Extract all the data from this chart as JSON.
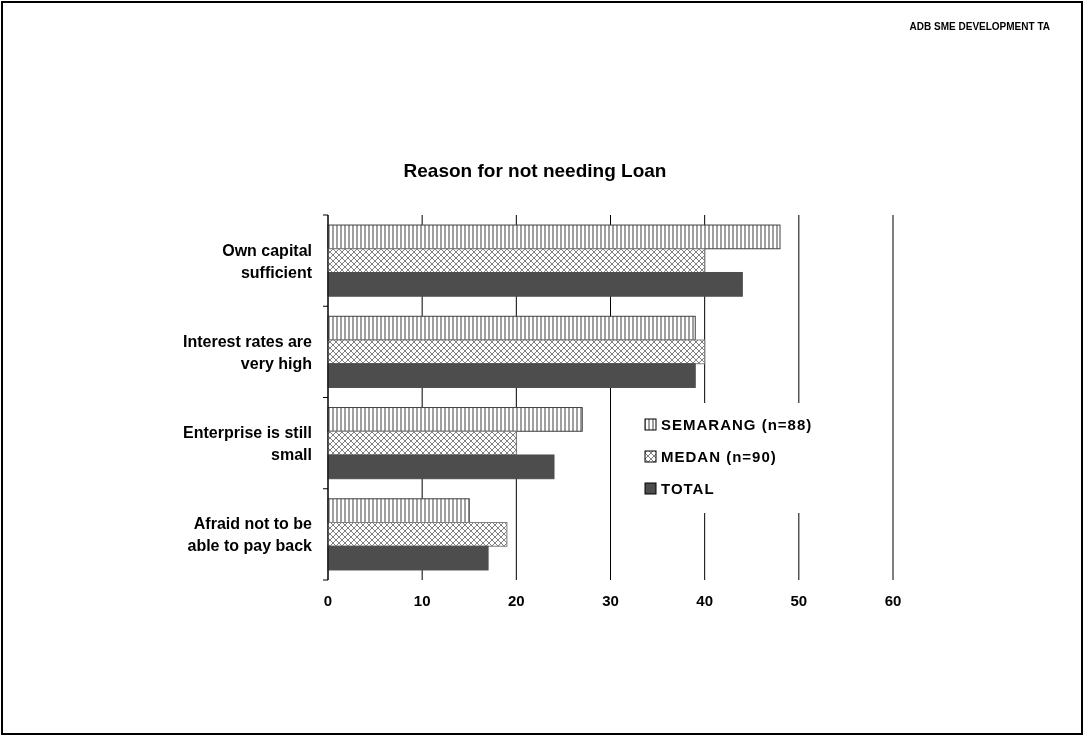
{
  "chart_data": {
    "type": "bar",
    "orientation": "horizontal",
    "title": "Reason for not needing Loan",
    "annotations": [
      "ADB SME DEVELOPMENT TA"
    ],
    "categories": [
      "Own capital sufficient",
      "Interest rates are very high",
      "Enterprise is still small",
      "Afraid not to be able to pay back"
    ],
    "series": [
      {
        "name": "SEMARANG (n=88)",
        "color": "#404040",
        "values": [
          48,
          39,
          27,
          15
        ]
      },
      {
        "name": "MEDAN (n=90)",
        "color": "#808080",
        "values": [
          40,
          40,
          20,
          19
        ]
      },
      {
        "name": "TOTAL",
        "color": "#4d4d4d",
        "values": [
          44,
          39,
          24,
          17
        ]
      }
    ],
    "xlim": [
      0,
      60
    ],
    "xticks": [
      0,
      10,
      20,
      30,
      40,
      50,
      60
    ],
    "grid": "x",
    "legend": "right"
  }
}
